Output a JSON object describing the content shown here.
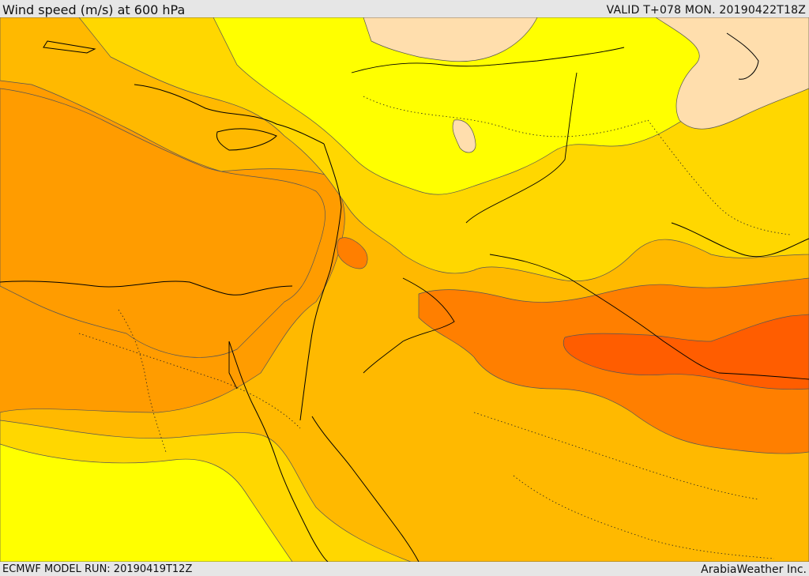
{
  "header": {
    "title": "Wind speed (m/s) at 600 hPa",
    "valid": "VALID T+078 MON. 20190422T18Z"
  },
  "footer": {
    "model_run": "ECMWF MODEL RUN: 20190419T12Z",
    "credit": "ArabiaWeather Inc."
  },
  "colors": {
    "band_0_5": "#ffdead",
    "band_5_10": "#ffff00",
    "band_10_15": "#ffd700",
    "band_15_20": "#ffb900",
    "band_20_25": "#ff9c00",
    "band_25_30": "#ff7f00",
    "band_30_35": "#ff5d00",
    "coastline": "#000000",
    "border": "#000000",
    "contour": "#555555"
  }
}
